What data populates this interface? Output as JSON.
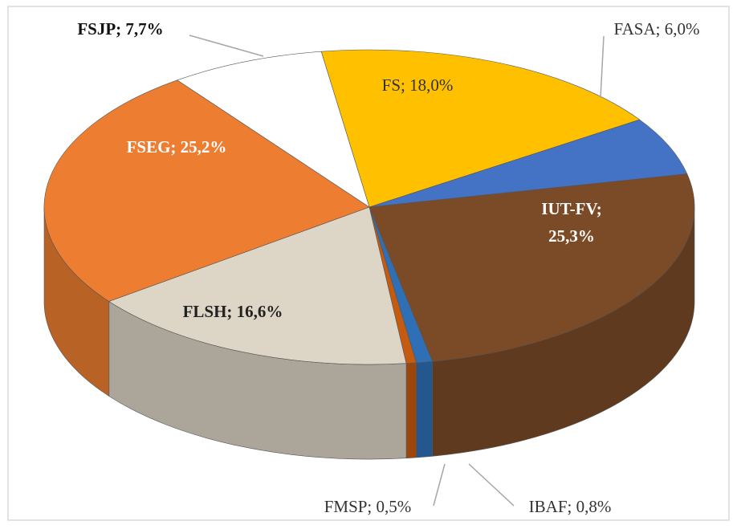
{
  "chart_data": {
    "type": "pie",
    "values": [
      18.0,
      6.0,
      25.3,
      0.8,
      0.5,
      16.6,
      25.2,
      7.7
    ],
    "value_labels": [
      "FS; 18,0%",
      "FASA; 6,0%",
      "IUT-FV; 25,3%",
      "IBAF; 0,8%",
      "FMSP; 0,5%",
      "FLSH; 16,6%",
      "FSEG; 25,2%",
      "FSJP; 7,7%"
    ],
    "colors": [
      "#ffc000",
      "#4472c4",
      "#7b4a26",
      "#2e6fb5",
      "#c55a11",
      "#ddd5c6",
      "#ed7d31",
      "#ffffff"
    ]
  }
}
